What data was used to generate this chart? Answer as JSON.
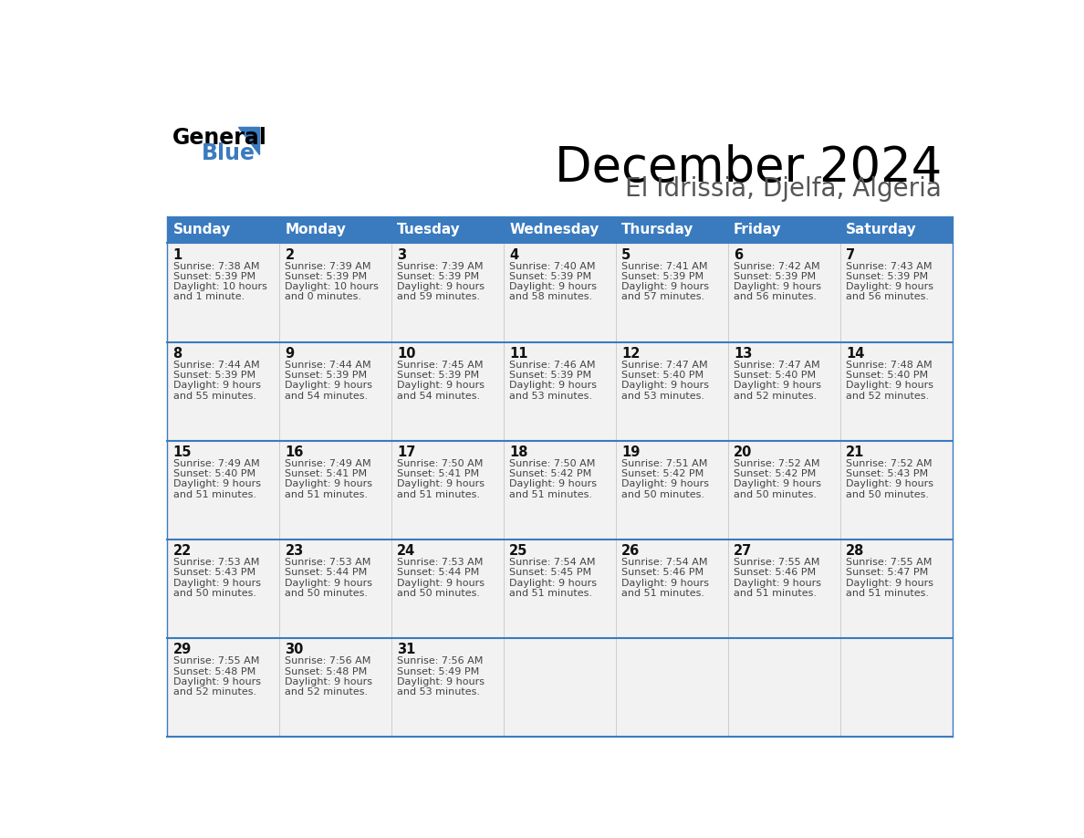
{
  "title": "December 2024",
  "subtitle": "El Idrissia, Djelfa, Algeria",
  "days_of_week": [
    "Sunday",
    "Monday",
    "Tuesday",
    "Wednesday",
    "Thursday",
    "Friday",
    "Saturday"
  ],
  "header_bg": "#3a7bbf",
  "header_text": "#ffffff",
  "row_bg": "#f2f2f2",
  "cell_border_color": "#3a7bbf",
  "cell_text_color": "#444444",
  "day_num_color": "#111111",
  "calendar_data": [
    {
      "day": 1,
      "col": 0,
      "row": 0,
      "sunrise": "7:38 AM",
      "sunset": "5:39 PM",
      "dl1": "10 hours",
      "dl2": "and 1 minute."
    },
    {
      "day": 2,
      "col": 1,
      "row": 0,
      "sunrise": "7:39 AM",
      "sunset": "5:39 PM",
      "dl1": "10 hours",
      "dl2": "and 0 minutes."
    },
    {
      "day": 3,
      "col": 2,
      "row": 0,
      "sunrise": "7:39 AM",
      "sunset": "5:39 PM",
      "dl1": "9 hours",
      "dl2": "and 59 minutes."
    },
    {
      "day": 4,
      "col": 3,
      "row": 0,
      "sunrise": "7:40 AM",
      "sunset": "5:39 PM",
      "dl1": "9 hours",
      "dl2": "and 58 minutes."
    },
    {
      "day": 5,
      "col": 4,
      "row": 0,
      "sunrise": "7:41 AM",
      "sunset": "5:39 PM",
      "dl1": "9 hours",
      "dl2": "and 57 minutes."
    },
    {
      "day": 6,
      "col": 5,
      "row": 0,
      "sunrise": "7:42 AM",
      "sunset": "5:39 PM",
      "dl1": "9 hours",
      "dl2": "and 56 minutes."
    },
    {
      "day": 7,
      "col": 6,
      "row": 0,
      "sunrise": "7:43 AM",
      "sunset": "5:39 PM",
      "dl1": "9 hours",
      "dl2": "and 56 minutes."
    },
    {
      "day": 8,
      "col": 0,
      "row": 1,
      "sunrise": "7:44 AM",
      "sunset": "5:39 PM",
      "dl1": "9 hours",
      "dl2": "and 55 minutes."
    },
    {
      "day": 9,
      "col": 1,
      "row": 1,
      "sunrise": "7:44 AM",
      "sunset": "5:39 PM",
      "dl1": "9 hours",
      "dl2": "and 54 minutes."
    },
    {
      "day": 10,
      "col": 2,
      "row": 1,
      "sunrise": "7:45 AM",
      "sunset": "5:39 PM",
      "dl1": "9 hours",
      "dl2": "and 54 minutes."
    },
    {
      "day": 11,
      "col": 3,
      "row": 1,
      "sunrise": "7:46 AM",
      "sunset": "5:39 PM",
      "dl1": "9 hours",
      "dl2": "and 53 minutes."
    },
    {
      "day": 12,
      "col": 4,
      "row": 1,
      "sunrise": "7:47 AM",
      "sunset": "5:40 PM",
      "dl1": "9 hours",
      "dl2": "and 53 minutes."
    },
    {
      "day": 13,
      "col": 5,
      "row": 1,
      "sunrise": "7:47 AM",
      "sunset": "5:40 PM",
      "dl1": "9 hours",
      "dl2": "and 52 minutes."
    },
    {
      "day": 14,
      "col": 6,
      "row": 1,
      "sunrise": "7:48 AM",
      "sunset": "5:40 PM",
      "dl1": "9 hours",
      "dl2": "and 52 minutes."
    },
    {
      "day": 15,
      "col": 0,
      "row": 2,
      "sunrise": "7:49 AM",
      "sunset": "5:40 PM",
      "dl1": "9 hours",
      "dl2": "and 51 minutes."
    },
    {
      "day": 16,
      "col": 1,
      "row": 2,
      "sunrise": "7:49 AM",
      "sunset": "5:41 PM",
      "dl1": "9 hours",
      "dl2": "and 51 minutes."
    },
    {
      "day": 17,
      "col": 2,
      "row": 2,
      "sunrise": "7:50 AM",
      "sunset": "5:41 PM",
      "dl1": "9 hours",
      "dl2": "and 51 minutes."
    },
    {
      "day": 18,
      "col": 3,
      "row": 2,
      "sunrise": "7:50 AM",
      "sunset": "5:42 PM",
      "dl1": "9 hours",
      "dl2": "and 51 minutes."
    },
    {
      "day": 19,
      "col": 4,
      "row": 2,
      "sunrise": "7:51 AM",
      "sunset": "5:42 PM",
      "dl1": "9 hours",
      "dl2": "and 50 minutes."
    },
    {
      "day": 20,
      "col": 5,
      "row": 2,
      "sunrise": "7:52 AM",
      "sunset": "5:42 PM",
      "dl1": "9 hours",
      "dl2": "and 50 minutes."
    },
    {
      "day": 21,
      "col": 6,
      "row": 2,
      "sunrise": "7:52 AM",
      "sunset": "5:43 PM",
      "dl1": "9 hours",
      "dl2": "and 50 minutes."
    },
    {
      "day": 22,
      "col": 0,
      "row": 3,
      "sunrise": "7:53 AM",
      "sunset": "5:43 PM",
      "dl1": "9 hours",
      "dl2": "and 50 minutes."
    },
    {
      "day": 23,
      "col": 1,
      "row": 3,
      "sunrise": "7:53 AM",
      "sunset": "5:44 PM",
      "dl1": "9 hours",
      "dl2": "and 50 minutes."
    },
    {
      "day": 24,
      "col": 2,
      "row": 3,
      "sunrise": "7:53 AM",
      "sunset": "5:44 PM",
      "dl1": "9 hours",
      "dl2": "and 50 minutes."
    },
    {
      "day": 25,
      "col": 3,
      "row": 3,
      "sunrise": "7:54 AM",
      "sunset": "5:45 PM",
      "dl1": "9 hours",
      "dl2": "and 51 minutes."
    },
    {
      "day": 26,
      "col": 4,
      "row": 3,
      "sunrise": "7:54 AM",
      "sunset": "5:46 PM",
      "dl1": "9 hours",
      "dl2": "and 51 minutes."
    },
    {
      "day": 27,
      "col": 5,
      "row": 3,
      "sunrise": "7:55 AM",
      "sunset": "5:46 PM",
      "dl1": "9 hours",
      "dl2": "and 51 minutes."
    },
    {
      "day": 28,
      "col": 6,
      "row": 3,
      "sunrise": "7:55 AM",
      "sunset": "5:47 PM",
      "dl1": "9 hours",
      "dl2": "and 51 minutes."
    },
    {
      "day": 29,
      "col": 0,
      "row": 4,
      "sunrise": "7:55 AM",
      "sunset": "5:48 PM",
      "dl1": "9 hours",
      "dl2": "and 52 minutes."
    },
    {
      "day": 30,
      "col": 1,
      "row": 4,
      "sunrise": "7:56 AM",
      "sunset": "5:48 PM",
      "dl1": "9 hours",
      "dl2": "and 52 minutes."
    },
    {
      "day": 31,
      "col": 2,
      "row": 4,
      "sunrise": "7:56 AM",
      "sunset": "5:49 PM",
      "dl1": "9 hours",
      "dl2": "and 53 minutes."
    }
  ],
  "num_rows": 5,
  "num_cols": 7,
  "logo_triangle_color": "#3a7bbf"
}
